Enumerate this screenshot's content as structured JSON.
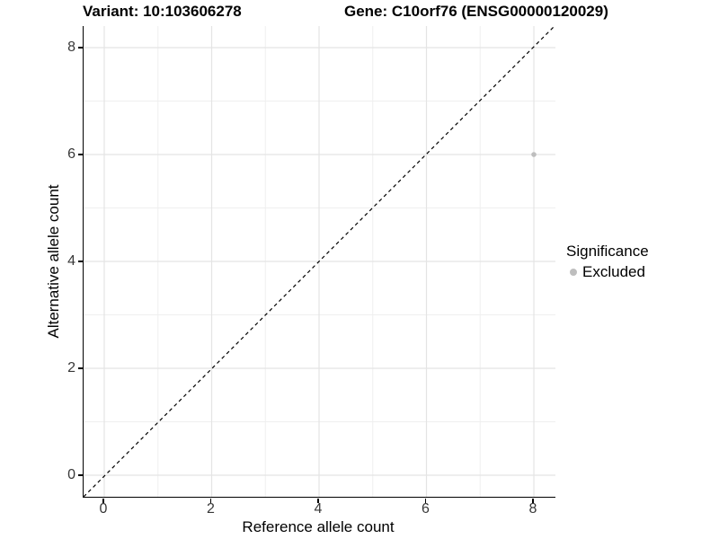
{
  "titles": {
    "variant": "Variant: 10:103606278",
    "gene": "Gene: C10orf76 (ENSG00000120029)"
  },
  "chart_data": {
    "type": "scatter",
    "title_variant": "Variant: 10:103606278",
    "title_gene": "Gene: C10orf76 (ENSG00000120029)",
    "xlabel": "Reference allele count",
    "ylabel": "Alternative allele count",
    "xlim": [
      -0.4,
      8.4
    ],
    "ylim": [
      -0.4,
      8.4
    ],
    "x_ticks": [
      0,
      2,
      4,
      6,
      8
    ],
    "y_ticks": [
      0,
      2,
      4,
      6,
      8
    ],
    "x_minor_ticks": [
      1,
      3,
      5,
      7
    ],
    "y_minor_ticks": [
      1,
      3,
      5,
      7
    ],
    "grid": true,
    "identity_line": {
      "style": "dashed",
      "slope": 1,
      "intercept": 0,
      "color": "#000000"
    },
    "series": [
      {
        "name": "Excluded",
        "color": "#bebebe",
        "points": [
          {
            "x": 8,
            "y": 6
          }
        ]
      }
    ],
    "legend": {
      "position": "right",
      "title": "Significance",
      "items": [
        {
          "label": "Excluded",
          "color": "#bebebe"
        }
      ]
    },
    "colors": {
      "background": "#ffffff",
      "grid_major": "#e4e4e4",
      "grid_minor": "#efefef",
      "axis_line": "#000000",
      "tick_label": "#383838",
      "point": "#bebebe"
    }
  }
}
